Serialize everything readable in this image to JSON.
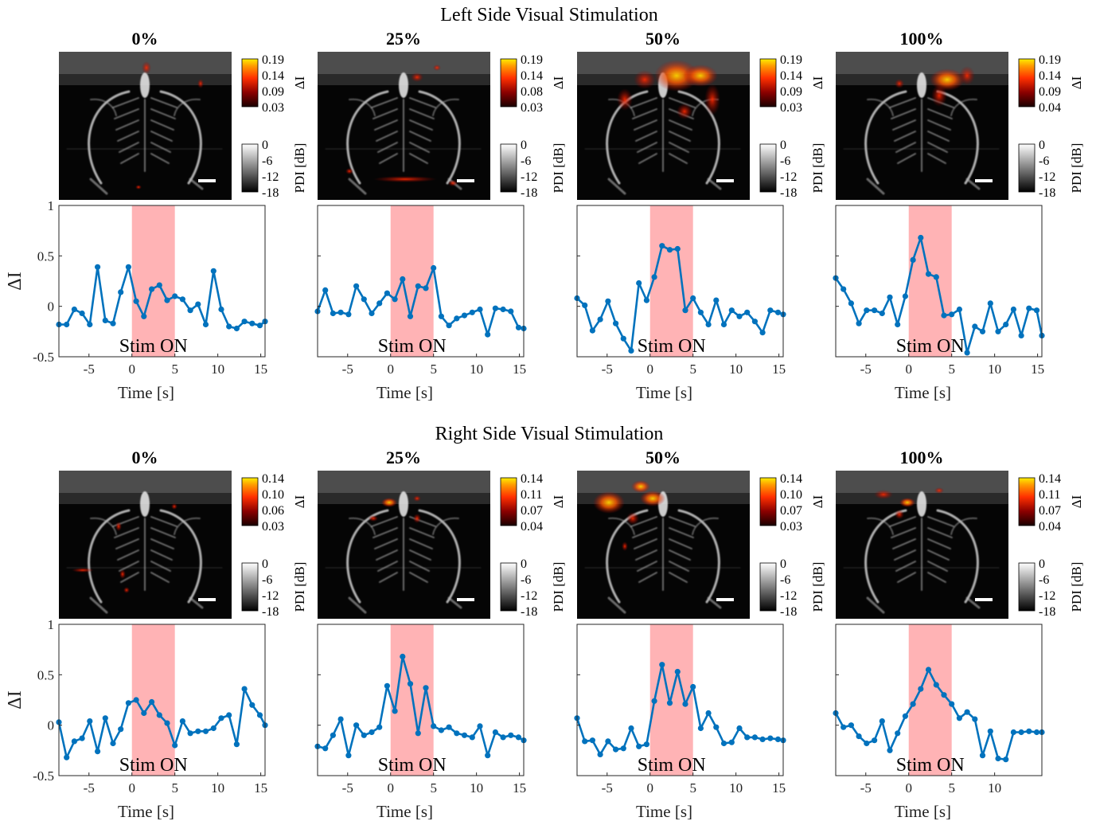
{
  "chart_data": [
    {
      "group_title": "Left Side Visual Stimulation",
      "panels": [
        {
          "title": "0%",
          "map_colorbar": {
            "label": "ΔI",
            "ticks": [
              "0.19",
              "0.14",
              "0.09",
              "0.03"
            ]
          },
          "pdi_colorbar": {
            "label": "PDI [dB]",
            "ticks": [
              "0",
              "-6",
              "-12",
              "-18"
            ]
          },
          "plot": {
            "type": "line",
            "xlabel": "Time [s]",
            "ylabel": "ΔI",
            "xlim": [
              -8.5,
              15.5
            ],
            "ylim": [
              -0.5,
              1
            ],
            "xticks": [
              -5,
              0,
              5,
              10,
              15
            ],
            "yticks": [
              -0.5,
              0,
              0.5,
              1
            ],
            "stim_window": [
              0,
              5
            ],
            "stim_label": "Stim ON",
            "x": [
              -8.5,
              -7.6,
              -6.7,
              -5.8,
              -4.9,
              -4.0,
              -3.1,
              -2.2,
              -1.3,
              -0.4,
              0.5,
              1.4,
              2.3,
              3.2,
              4.1,
              5.0,
              5.9,
              6.8,
              7.7,
              8.6,
              9.5,
              10.4,
              11.3,
              12.2,
              13.1,
              14.0,
              14.9,
              15.5
            ],
            "y": [
              -0.18,
              -0.18,
              -0.03,
              -0.07,
              -0.18,
              0.39,
              -0.14,
              -0.17,
              0.14,
              0.39,
              0.05,
              -0.1,
              0.17,
              0.21,
              0.06,
              0.1,
              0.07,
              -0.04,
              0.02,
              -0.18,
              0.35,
              -0.03,
              -0.2,
              -0.22,
              -0.15,
              -0.17,
              -0.19,
              -0.15
            ]
          }
        },
        {
          "title": "25%",
          "map_colorbar": {
            "label": "ΔI",
            "ticks": [
              "0.19",
              "0.14",
              "0.08",
              "0.03"
            ]
          },
          "pdi_colorbar": {
            "label": "PDI [dB]",
            "ticks": [
              "0",
              "-6",
              "-12",
              "-18"
            ]
          },
          "plot": {
            "type": "line",
            "xlabel": "Time [s]",
            "ylabel": "",
            "xlim": [
              -8.5,
              15.5
            ],
            "ylim": [
              -0.5,
              1
            ],
            "xticks": [
              -5,
              0,
              5,
              10,
              15
            ],
            "yticks": [
              -0.5,
              0,
              0.5,
              1
            ],
            "stim_window": [
              0,
              5
            ],
            "stim_label": "Stim ON",
            "x": [
              -8.5,
              -7.6,
              -6.7,
              -5.8,
              -4.9,
              -4.0,
              -3.1,
              -2.2,
              -1.3,
              -0.4,
              0.5,
              1.4,
              2.3,
              3.2,
              4.1,
              5.0,
              5.9,
              6.8,
              7.7,
              8.6,
              9.5,
              10.4,
              11.3,
              12.2,
              13.1,
              14.0,
              14.9,
              15.5
            ],
            "y": [
              -0.05,
              0.16,
              -0.07,
              -0.06,
              -0.08,
              0.2,
              0.07,
              -0.07,
              0.03,
              0.13,
              0.07,
              0.27,
              -0.1,
              0.2,
              0.18,
              0.38,
              -0.1,
              -0.19,
              -0.12,
              -0.09,
              -0.06,
              -0.03,
              -0.28,
              -0.02,
              -0.03,
              -0.05,
              -0.21,
              -0.22
            ]
          }
        },
        {
          "title": "50%",
          "map_colorbar": {
            "label": "ΔI",
            "ticks": [
              "0.19",
              "0.14",
              "0.09",
              "0.03"
            ]
          },
          "pdi_colorbar": {
            "label": "PDI [dB]",
            "ticks": [
              "0",
              "-6",
              "-12",
              "-18"
            ]
          },
          "plot": {
            "type": "line",
            "xlabel": "Time [s]",
            "ylabel": "",
            "xlim": [
              -8.5,
              15.5
            ],
            "ylim": [
              -0.5,
              1
            ],
            "xticks": [
              -5,
              0,
              5,
              10,
              15
            ],
            "yticks": [
              -0.5,
              0,
              0.5,
              1
            ],
            "stim_window": [
              0,
              5
            ],
            "stim_label": "Stim ON",
            "x": [
              -8.5,
              -7.6,
              -6.7,
              -5.8,
              -4.9,
              -4.0,
              -3.1,
              -2.2,
              -1.3,
              -0.4,
              0.5,
              1.4,
              2.3,
              3.2,
              4.1,
              5.0,
              5.9,
              6.8,
              7.7,
              8.6,
              9.5,
              10.4,
              11.3,
              12.2,
              13.1,
              14.0,
              14.9,
              15.5
            ],
            "y": [
              0.08,
              0.01,
              -0.24,
              -0.13,
              0.05,
              -0.17,
              -0.32,
              -0.44,
              0.23,
              0.06,
              0.29,
              0.6,
              0.56,
              0.57,
              -0.04,
              0.08,
              -0.06,
              -0.18,
              0.06,
              -0.18,
              -0.04,
              -0.1,
              -0.06,
              -0.15,
              -0.26,
              -0.04,
              -0.06,
              -0.08
            ]
          }
        },
        {
          "title": "100%",
          "map_colorbar": {
            "label": "ΔI",
            "ticks": [
              "0.19",
              "0.14",
              "0.09",
              "0.04"
            ]
          },
          "pdi_colorbar": {
            "label": "PDI [dB]",
            "ticks": [
              "0",
              "-6",
              "-12",
              "-18"
            ]
          },
          "plot": {
            "type": "line",
            "xlabel": "Time [s]",
            "ylabel": "",
            "xlim": [
              -8.5,
              15.5
            ],
            "ylim": [
              -0.5,
              1
            ],
            "xticks": [
              -5,
              0,
              5,
              10,
              15
            ],
            "yticks": [
              -0.5,
              0,
              0.5,
              1
            ],
            "stim_window": [
              0,
              5
            ],
            "stim_label": "Stim ON",
            "x": [
              -8.5,
              -7.6,
              -6.7,
              -5.8,
              -4.9,
              -4.0,
              -3.1,
              -2.2,
              -1.3,
              -0.4,
              0.5,
              1.4,
              2.3,
              3.2,
              4.1,
              5.0,
              5.9,
              6.8,
              7.7,
              8.6,
              9.5,
              10.4,
              11.3,
              12.2,
              13.1,
              14.0,
              14.9,
              15.5
            ],
            "y": [
              0.28,
              0.17,
              0.03,
              -0.17,
              -0.04,
              -0.04,
              -0.07,
              0.09,
              -0.18,
              0.1,
              0.46,
              0.68,
              0.32,
              0.29,
              -0.09,
              -0.08,
              -0.03,
              -0.46,
              -0.2,
              -0.25,
              0.03,
              -0.25,
              -0.18,
              -0.03,
              -0.29,
              -0.02,
              -0.04,
              -0.29
            ]
          }
        }
      ]
    },
    {
      "group_title": "Right Side Visual Stimulation",
      "panels": [
        {
          "title": "0%",
          "map_colorbar": {
            "label": "ΔI",
            "ticks": [
              "0.14",
              "0.10",
              "0.06",
              "0.03"
            ]
          },
          "pdi_colorbar": {
            "label": "PDI [dB]",
            "ticks": [
              "0",
              "-6",
              "-12",
              "-18"
            ]
          },
          "plot": {
            "type": "line",
            "xlabel": "Time [s]",
            "ylabel": "ΔI",
            "xlim": [
              -8.5,
              15.5
            ],
            "ylim": [
              -0.5,
              1
            ],
            "xticks": [
              -5,
              0,
              5,
              10,
              15
            ],
            "yticks": [
              -0.5,
              0,
              0.5,
              1
            ],
            "stim_window": [
              0,
              5
            ],
            "stim_label": "Stim ON",
            "x": [
              -8.5,
              -7.6,
              -6.7,
              -5.8,
              -4.9,
              -4.0,
              -3.1,
              -2.2,
              -1.3,
              -0.4,
              0.5,
              1.4,
              2.3,
              3.2,
              4.1,
              5.0,
              5.9,
              6.8,
              7.7,
              8.6,
              9.5,
              10.4,
              11.3,
              12.2,
              13.1,
              14.0,
              14.9,
              15.5
            ],
            "y": [
              0.03,
              -0.32,
              -0.16,
              -0.13,
              0.04,
              -0.26,
              0.07,
              -0.18,
              -0.04,
              0.22,
              0.25,
              0.12,
              0.23,
              0.1,
              0.02,
              -0.2,
              0.04,
              -0.08,
              -0.06,
              -0.06,
              -0.03,
              0.07,
              0.1,
              -0.19,
              0.36,
              0.2,
              0.1,
              0.0
            ]
          }
        },
        {
          "title": "25%",
          "map_colorbar": {
            "label": "ΔI",
            "ticks": [
              "0.14",
              "0.11",
              "0.07",
              "0.04"
            ]
          },
          "pdi_colorbar": {
            "label": "PDI [dB]",
            "ticks": [
              "0",
              "-6",
              "-12",
              "-18"
            ]
          },
          "plot": {
            "type": "line",
            "xlabel": "Time [s]",
            "ylabel": "",
            "xlim": [
              -8.5,
              15.5
            ],
            "ylim": [
              -0.5,
              1
            ],
            "xticks": [
              -5,
              0,
              5,
              10,
              15
            ],
            "yticks": [
              -0.5,
              0,
              0.5,
              1
            ],
            "stim_window": [
              0,
              5
            ],
            "stim_label": "Stim ON",
            "x": [
              -8.5,
              -7.6,
              -6.7,
              -5.8,
              -4.9,
              -4.0,
              -3.1,
              -2.2,
              -1.3,
              -0.4,
              0.5,
              1.4,
              2.3,
              3.2,
              4.1,
              5.0,
              5.9,
              6.8,
              7.7,
              8.6,
              9.5,
              10.4,
              11.3,
              12.2,
              13.1,
              14.0,
              14.9,
              15.5
            ],
            "y": [
              -0.21,
              -0.23,
              -0.1,
              0.06,
              -0.3,
              0.0,
              -0.1,
              -0.07,
              -0.02,
              0.39,
              0.14,
              0.68,
              0.41,
              -0.08,
              0.37,
              -0.01,
              -0.05,
              -0.02,
              -0.08,
              -0.1,
              -0.12,
              -0.01,
              -0.3,
              -0.07,
              -0.12,
              -0.1,
              -0.12,
              -0.15
            ]
          }
        },
        {
          "title": "50%",
          "map_colorbar": {
            "label": "ΔI",
            "ticks": [
              "0.14",
              "0.10",
              "0.07",
              "0.03"
            ]
          },
          "pdi_colorbar": {
            "label": "PDI [dB]",
            "ticks": [
              "0",
              "-6",
              "-12",
              "-18"
            ]
          },
          "plot": {
            "type": "line",
            "xlabel": "Time [s]",
            "ylabel": "",
            "xlim": [
              -8.5,
              15.5
            ],
            "ylim": [
              -0.5,
              1
            ],
            "xticks": [
              -5,
              0,
              5,
              10,
              15
            ],
            "yticks": [
              -0.5,
              0,
              0.5,
              1
            ],
            "stim_window": [
              0,
              5
            ],
            "stim_label": "Stim ON",
            "x": [
              -8.5,
              -7.6,
              -6.7,
              -5.8,
              -4.9,
              -4.0,
              -3.1,
              -2.2,
              -1.3,
              -0.4,
              0.5,
              1.4,
              2.3,
              3.2,
              4.1,
              5.0,
              5.9,
              6.8,
              7.7,
              8.6,
              9.5,
              10.4,
              11.3,
              12.2,
              13.1,
              14.0,
              14.9,
              15.5
            ],
            "y": [
              0.07,
              -0.16,
              -0.15,
              -0.29,
              -0.16,
              -0.24,
              -0.23,
              -0.03,
              -0.21,
              -0.19,
              0.24,
              0.6,
              0.22,
              0.53,
              0.21,
              0.38,
              -0.03,
              0.12,
              -0.02,
              -0.18,
              -0.17,
              -0.03,
              -0.12,
              -0.12,
              -0.14,
              -0.13,
              -0.14,
              -0.15
            ]
          }
        },
        {
          "title": "100%",
          "map_colorbar": {
            "label": "ΔI",
            "ticks": [
              "0.14",
              "0.11",
              "0.07",
              "0.04"
            ]
          },
          "pdi_colorbar": {
            "label": "PDI [dB]",
            "ticks": [
              "0",
              "-6",
              "-12",
              "-18"
            ]
          },
          "plot": {
            "type": "line",
            "xlabel": "Time [s]",
            "ylabel": "",
            "xlim": [
              -8.5,
              15.5
            ],
            "ylim": [
              -0.5,
              1
            ],
            "xticks": [
              -5,
              0,
              5,
              10
            ],
            "yticks": [
              -0.5,
              0,
              0.5,
              1
            ],
            "stim_window": [
              0,
              5
            ],
            "stim_label": "Stim ON",
            "x": [
              -8.5,
              -7.6,
              -6.7,
              -5.8,
              -4.9,
              -4.0,
              -3.1,
              -2.2,
              -1.3,
              -0.4,
              0.5,
              1.4,
              2.3,
              3.2,
              4.1,
              5.0,
              5.9,
              6.8,
              7.7,
              8.6,
              9.5,
              10.4,
              11.3,
              12.2,
              13.1,
              14.0,
              14.9,
              15.5
            ],
            "y": [
              0.12,
              -0.02,
              0.0,
              -0.11,
              -0.18,
              -0.15,
              0.04,
              -0.25,
              -0.08,
              0.09,
              0.21,
              0.36,
              0.55,
              0.4,
              0.3,
              0.21,
              0.07,
              0.13,
              0.06,
              -0.3,
              -0.06,
              -0.33,
              -0.34,
              -0.07,
              -0.07,
              -0.06,
              -0.07,
              -0.07
            ]
          }
        }
      ]
    }
  ],
  "colors": {
    "line": "#0072BD",
    "stim_patch": "#FFB3B5",
    "map_hot": [
      "#2a0000",
      "#8b0000",
      "#ff3300",
      "#ff9900",
      "#ffee00"
    ],
    "pdi_gray": [
      "#ffffff",
      "#000000"
    ]
  }
}
